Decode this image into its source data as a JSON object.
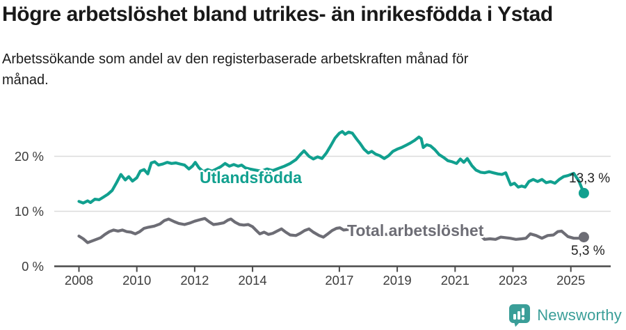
{
  "title": "Högre arbetslöshet bland utrikes- än inrikesfödda i Ystad",
  "subtitle": {
    "line1": "Arbetssökande som andel av den registerbaserade arbetskraften månad för",
    "line2": "månad."
  },
  "footer": {
    "brand": "Newsworthy",
    "logo": "newsworthy-speech-bubble-barchart-icon"
  },
  "colors": {
    "accent_teal": "#11A08F",
    "line_gray": "#6D6D75",
    "brand_teal": "#3A9E98",
    "grid": "#DADADA",
    "axis": "#4A4A4A",
    "tick_text": "#3C3C3C",
    "title_text": "#191919"
  },
  "chart_data": {
    "type": "line",
    "unit": "%",
    "xlabel": "",
    "ylabel": "",
    "grid": "horizontal",
    "legend": "inline-labels",
    "xlim": [
      2007.6,
      2025.9
    ],
    "ylim": [
      0,
      26
    ],
    "x_ticks": [
      {
        "v": 2008,
        "label": "2008"
      },
      {
        "v": 2010,
        "label": "2010"
      },
      {
        "v": 2012,
        "label": "2012"
      },
      {
        "v": 2014,
        "label": "2014"
      },
      {
        "v": 2017,
        "label": "2017"
      },
      {
        "v": 2019,
        "label": "2019"
      },
      {
        "v": 2021,
        "label": "2021"
      },
      {
        "v": 2023,
        "label": "2023"
      },
      {
        "v": 2025,
        "label": "2025"
      }
    ],
    "y_ticks": [
      {
        "v": 0,
        "label": "0 %"
      },
      {
        "v": 10,
        "label": "10 %"
      },
      {
        "v": 20,
        "label": "20 %"
      }
    ],
    "series": [
      {
        "name": "Utlandsfödda",
        "color": "#11A08F",
        "end_label": "13,3 %",
        "end_value": 13.3,
        "points": [
          [
            2008.0,
            11.8
          ],
          [
            2008.15,
            11.5
          ],
          [
            2008.3,
            11.9
          ],
          [
            2008.4,
            11.6
          ],
          [
            2008.55,
            12.2
          ],
          [
            2008.7,
            12.1
          ],
          [
            2008.85,
            12.6
          ],
          [
            2009.0,
            13.1
          ],
          [
            2009.15,
            13.8
          ],
          [
            2009.3,
            15.2
          ],
          [
            2009.45,
            16.7
          ],
          [
            2009.6,
            15.7
          ],
          [
            2009.72,
            16.3
          ],
          [
            2009.85,
            15.5
          ],
          [
            2010.0,
            16.1
          ],
          [
            2010.12,
            17.3
          ],
          [
            2010.25,
            17.6
          ],
          [
            2010.38,
            16.8
          ],
          [
            2010.5,
            18.8
          ],
          [
            2010.62,
            19.0
          ],
          [
            2010.75,
            18.4
          ],
          [
            2010.9,
            18.6
          ],
          [
            2011.05,
            18.9
          ],
          [
            2011.2,
            18.7
          ],
          [
            2011.35,
            18.8
          ],
          [
            2011.5,
            18.6
          ],
          [
            2011.65,
            18.4
          ],
          [
            2011.8,
            17.7
          ],
          [
            2011.92,
            18.2
          ],
          [
            2012.02,
            18.9
          ],
          [
            2012.15,
            17.9
          ],
          [
            2012.3,
            17.2
          ],
          [
            2012.45,
            17.6
          ],
          [
            2012.6,
            17.3
          ],
          [
            2012.75,
            17.7
          ],
          [
            2012.9,
            18.1
          ],
          [
            2013.05,
            18.7
          ],
          [
            2013.2,
            18.2
          ],
          [
            2013.35,
            18.5
          ],
          [
            2013.5,
            18.2
          ],
          [
            2013.62,
            18.4
          ],
          [
            2013.75,
            17.9
          ],
          [
            2013.9,
            17.7
          ],
          [
            2014.1,
            17.5
          ],
          [
            2014.3,
            17.3
          ],
          [
            2014.5,
            17.7
          ],
          [
            2014.7,
            17.4
          ],
          [
            2014.9,
            17.8
          ],
          [
            2015.1,
            18.2
          ],
          [
            2015.3,
            18.7
          ],
          [
            2015.5,
            19.4
          ],
          [
            2015.65,
            20.3
          ],
          [
            2015.78,
            21.0
          ],
          [
            2015.95,
            20.0
          ],
          [
            2016.1,
            19.5
          ],
          [
            2016.25,
            19.9
          ],
          [
            2016.4,
            19.6
          ],
          [
            2016.55,
            20.6
          ],
          [
            2016.7,
            21.9
          ],
          [
            2016.85,
            23.3
          ],
          [
            2017.0,
            24.2
          ],
          [
            2017.1,
            24.5
          ],
          [
            2017.2,
            24.0
          ],
          [
            2017.32,
            24.4
          ],
          [
            2017.45,
            24.2
          ],
          [
            2017.6,
            23.1
          ],
          [
            2017.72,
            22.3
          ],
          [
            2017.85,
            21.3
          ],
          [
            2018.0,
            20.6
          ],
          [
            2018.12,
            20.9
          ],
          [
            2018.25,
            20.4
          ],
          [
            2018.4,
            20.1
          ],
          [
            2018.55,
            19.6
          ],
          [
            2018.7,
            20.1
          ],
          [
            2018.85,
            20.9
          ],
          [
            2019.0,
            21.3
          ],
          [
            2019.15,
            21.6
          ],
          [
            2019.3,
            22.0
          ],
          [
            2019.45,
            22.4
          ],
          [
            2019.6,
            22.9
          ],
          [
            2019.75,
            23.5
          ],
          [
            2019.83,
            23.2
          ],
          [
            2019.9,
            21.6
          ],
          [
            2020.02,
            22.1
          ],
          [
            2020.15,
            21.9
          ],
          [
            2020.3,
            21.2
          ],
          [
            2020.45,
            20.3
          ],
          [
            2020.6,
            19.8
          ],
          [
            2020.75,
            19.2
          ],
          [
            2020.9,
            19.0
          ],
          [
            2021.05,
            18.7
          ],
          [
            2021.18,
            19.5
          ],
          [
            2021.3,
            18.9
          ],
          [
            2021.42,
            19.6
          ],
          [
            2021.58,
            18.3
          ],
          [
            2021.72,
            17.5
          ],
          [
            2021.88,
            17.1
          ],
          [
            2022.02,
            17.0
          ],
          [
            2022.18,
            17.2
          ],
          [
            2022.32,
            17.0
          ],
          [
            2022.48,
            16.8
          ],
          [
            2022.62,
            16.7
          ],
          [
            2022.75,
            17.0
          ],
          [
            2022.92,
            14.8
          ],
          [
            2023.05,
            15.1
          ],
          [
            2023.18,
            14.4
          ],
          [
            2023.3,
            14.6
          ],
          [
            2023.42,
            14.4
          ],
          [
            2023.55,
            15.4
          ],
          [
            2023.7,
            15.8
          ],
          [
            2023.85,
            15.4
          ],
          [
            2024.0,
            15.8
          ],
          [
            2024.15,
            15.2
          ],
          [
            2024.3,
            15.4
          ],
          [
            2024.45,
            15.1
          ],
          [
            2024.6,
            15.8
          ],
          [
            2024.75,
            16.3
          ],
          [
            2024.9,
            16.5
          ],
          [
            2025.1,
            16.9
          ],
          [
            2025.28,
            15.5
          ],
          [
            2025.45,
            13.3
          ]
        ]
      },
      {
        "name": "Total arbetslöshet",
        "color": "#6D6D75",
        "end_label": "5,3 %",
        "end_value": 5.3,
        "points": [
          [
            2008.0,
            5.5
          ],
          [
            2008.15,
            5.0
          ],
          [
            2008.3,
            4.3
          ],
          [
            2008.45,
            4.6
          ],
          [
            2008.6,
            4.9
          ],
          [
            2008.75,
            5.2
          ],
          [
            2008.9,
            5.8
          ],
          [
            2009.05,
            6.3
          ],
          [
            2009.2,
            6.6
          ],
          [
            2009.35,
            6.4
          ],
          [
            2009.5,
            6.6
          ],
          [
            2009.65,
            6.3
          ],
          [
            2009.8,
            6.2
          ],
          [
            2009.95,
            5.9
          ],
          [
            2010.1,
            6.3
          ],
          [
            2010.25,
            6.9
          ],
          [
            2010.4,
            7.1
          ],
          [
            2010.6,
            7.3
          ],
          [
            2010.8,
            7.7
          ],
          [
            2010.95,
            8.3
          ],
          [
            2011.1,
            8.6
          ],
          [
            2011.3,
            8.1
          ],
          [
            2011.45,
            7.8
          ],
          [
            2011.65,
            7.6
          ],
          [
            2011.85,
            7.9
          ],
          [
            2012.0,
            8.2
          ],
          [
            2012.2,
            8.5
          ],
          [
            2012.35,
            8.7
          ],
          [
            2012.5,
            8.1
          ],
          [
            2012.65,
            7.6
          ],
          [
            2012.8,
            7.7
          ],
          [
            2013.0,
            7.9
          ],
          [
            2013.15,
            8.4
          ],
          [
            2013.25,
            8.6
          ],
          [
            2013.4,
            8.0
          ],
          [
            2013.55,
            7.6
          ],
          [
            2013.7,
            7.5
          ],
          [
            2013.85,
            7.6
          ],
          [
            2014.0,
            7.2
          ],
          [
            2014.15,
            6.4
          ],
          [
            2014.25,
            5.9
          ],
          [
            2014.4,
            6.2
          ],
          [
            2014.55,
            5.8
          ],
          [
            2014.7,
            6.0
          ],
          [
            2014.85,
            6.4
          ],
          [
            2015.0,
            6.8
          ],
          [
            2015.15,
            6.2
          ],
          [
            2015.3,
            5.7
          ],
          [
            2015.5,
            5.6
          ],
          [
            2015.65,
            6.0
          ],
          [
            2015.8,
            6.5
          ],
          [
            2015.95,
            6.8
          ],
          [
            2016.1,
            6.2
          ],
          [
            2016.3,
            5.6
          ],
          [
            2016.45,
            5.3
          ],
          [
            2016.6,
            5.9
          ],
          [
            2016.75,
            6.5
          ],
          [
            2016.9,
            6.9
          ],
          [
            2017.02,
            7.0
          ],
          [
            2017.15,
            6.6
          ],
          [
            2017.3,
            6.7
          ],
          [
            2017.5,
            6.4
          ],
          [
            2017.7,
            6.2
          ],
          [
            2017.9,
            6.1
          ],
          [
            2018.1,
            6.0
          ],
          [
            2018.35,
            5.9
          ],
          [
            2018.6,
            5.8
          ],
          [
            2018.85,
            5.9
          ],
          [
            2019.1,
            5.8
          ],
          [
            2019.35,
            5.9
          ],
          [
            2019.6,
            6.0
          ],
          [
            2019.85,
            6.1
          ],
          [
            2020.05,
            6.3
          ],
          [
            2020.3,
            6.8
          ],
          [
            2020.5,
            7.1
          ],
          [
            2020.75,
            6.9
          ],
          [
            2021.0,
            6.7
          ],
          [
            2021.25,
            6.4
          ],
          [
            2021.5,
            6.1
          ],
          [
            2021.7,
            5.9
          ],
          [
            2021.88,
            5.6
          ],
          [
            2022.02,
            4.9
          ],
          [
            2022.2,
            5.0
          ],
          [
            2022.4,
            4.9
          ],
          [
            2022.58,
            5.3
          ],
          [
            2022.75,
            5.2
          ],
          [
            2022.9,
            5.1
          ],
          [
            2023.1,
            4.9
          ],
          [
            2023.3,
            5.0
          ],
          [
            2023.45,
            5.1
          ],
          [
            2023.6,
            5.9
          ],
          [
            2023.8,
            5.6
          ],
          [
            2024.0,
            5.1
          ],
          [
            2024.2,
            5.6
          ],
          [
            2024.4,
            5.7
          ],
          [
            2024.55,
            6.3
          ],
          [
            2024.68,
            6.4
          ],
          [
            2024.9,
            5.4
          ],
          [
            2025.1,
            5.1
          ],
          [
            2025.28,
            5.1
          ],
          [
            2025.45,
            5.3
          ]
        ]
      }
    ]
  }
}
